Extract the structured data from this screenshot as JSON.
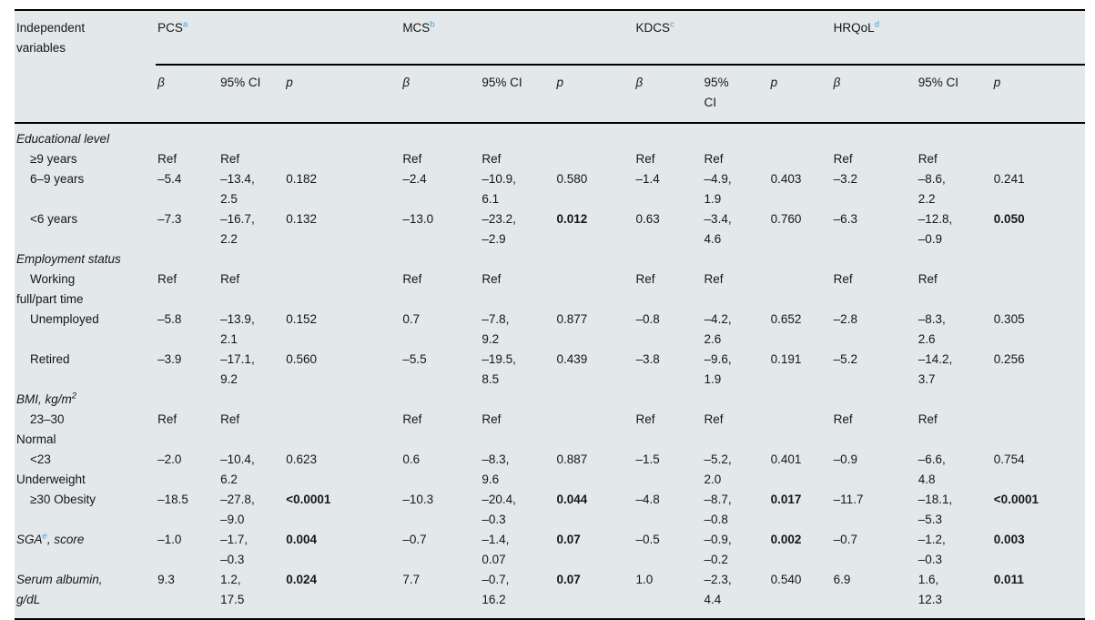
{
  "header": {
    "row_label": "Independent\nvariables",
    "groups": [
      {
        "label": "PCS",
        "sup": "a",
        "beta": "β",
        "ci": "95% CI",
        "p": "p"
      },
      {
        "label": "MCS",
        "sup": "b",
        "beta": "β",
        "ci": "95% CI",
        "p": "p"
      },
      {
        "label": "KDCS",
        "sup": "c",
        "beta": "β",
        "ci": "95%\nCI",
        "p": "p"
      },
      {
        "label": "HRQoL",
        "sup": "d",
        "beta": "β",
        "ci": "95% CI",
        "p": "p"
      }
    ]
  },
  "accent_color": "#3fa3d8",
  "background_color": "#e3e8eb",
  "rows": [
    {
      "type": "section",
      "label": {
        "pre": "Educational level"
      }
    },
    {
      "type": "item",
      "label": {
        "pre": "≥9 years"
      },
      "cells": [
        "Ref",
        "Ref",
        "",
        "Ref",
        "Ref",
        "",
        "Ref",
        "Ref",
        "",
        "Ref",
        "Ref",
        ""
      ]
    },
    {
      "type": "item",
      "label": {
        "pre": "6–9 years"
      },
      "cells": [
        "–5.4",
        "–13.4,\n2.5",
        "0.182",
        "–2.4",
        "–10.9,\n6.1",
        "0.580",
        "–1.4",
        "–4.9,\n1.9",
        "0.403",
        "–3.2",
        "–8.6,\n2.2",
        "0.241"
      ]
    },
    {
      "type": "item",
      "label": {
        "pre": "<6 years"
      },
      "cells": [
        "–7.3",
        "–16.7,\n2.2",
        "0.132",
        "–13.0",
        "–23.2,\n–2.9",
        {
          "v": "0.012",
          "b": true
        },
        "0.63",
        "–3.4,\n4.6",
        "0.760",
        "–6.3",
        "–12.8,\n–0.9",
        {
          "v": "0.050",
          "b": true
        }
      ]
    },
    {
      "type": "section",
      "label": {
        "pre": "Employment status"
      }
    },
    {
      "type": "item",
      "label": {
        "pre": "Working\nfull/part time"
      },
      "cells": [
        "Ref",
        "Ref",
        "",
        "Ref",
        "Ref",
        "",
        "Ref",
        "Ref",
        "",
        "Ref",
        "Ref",
        ""
      ]
    },
    {
      "type": "item",
      "label": {
        "pre": "Unemployed"
      },
      "cells": [
        "–5.8",
        "–13.9,\n2.1",
        "0.152",
        "0.7",
        "–7.8,\n9.2",
        "0.877",
        "–0.8",
        "–4.2,\n2.6",
        "0.652",
        "–2.8",
        "–8.3,\n2.6",
        "0.305"
      ]
    },
    {
      "type": "item",
      "label": {
        "pre": "Retired"
      },
      "cells": [
        "–3.9",
        "–17.1,\n9.2",
        "0.560",
        "–5.5",
        "–19.5,\n8.5",
        "0.439",
        "–3.8",
        "–9.6,\n1.9",
        "0.191",
        "–5.2",
        "–14.2,\n3.7",
        "0.256"
      ]
    },
    {
      "type": "section",
      "label": {
        "pre": "BMI, kg/m",
        "sup": "2",
        "supStyle": "black"
      }
    },
    {
      "type": "item",
      "label": {
        "pre": "23–30\nNormal"
      },
      "cells": [
        "Ref",
        "Ref",
        "",
        "Ref",
        "Ref",
        "",
        "Ref",
        "Ref",
        "",
        "Ref",
        "Ref",
        ""
      ]
    },
    {
      "type": "item",
      "label": {
        "pre": "<23\nUnderweight"
      },
      "cells": [
        "–2.0",
        "–10.4,\n6.2",
        "0.623",
        "0.6",
        "–8.3,\n9.6",
        "0.887",
        "–1.5",
        "–5.2,\n2.0",
        "0.401",
        "–0.9",
        "–6.6,\n4.8",
        "0.754"
      ]
    },
    {
      "type": "item",
      "label": {
        "pre": "≥30 Obesity"
      },
      "cells": [
        "–18.5",
        "–27.8,\n–9.0",
        {
          "v": "<0.0001",
          "b": true
        },
        "–10.3",
        "–20.4,\n–0.3",
        {
          "v": "0.044",
          "b": true
        },
        "–4.8",
        "–8.7,\n–0.8",
        {
          "v": "0.017",
          "b": true
        },
        "–11.7",
        "–18.1,\n–5.3",
        {
          "v": "<0.0001",
          "b": true
        }
      ]
    },
    {
      "type": "var",
      "label": {
        "pre": "SGA",
        "sup": "e",
        "supStyle": "blue",
        "post": ", score"
      },
      "cells": [
        "–1.0",
        "–1.7,\n–0.3",
        {
          "v": "0.004",
          "b": true
        },
        "–0.7",
        "–1.4,\n0.07",
        {
          "v": "0.07",
          "b": true
        },
        "–0.5",
        "–0.9,\n–0.2",
        {
          "v": "0.002",
          "b": true
        },
        "–0.7",
        "–1.2,\n–0.3",
        {
          "v": "0.003",
          "b": true
        }
      ]
    },
    {
      "type": "var",
      "label": {
        "pre": "Serum albumin,\ng/dL"
      },
      "cells": [
        "9.3",
        "1.2,\n17.5",
        {
          "v": "0.024",
          "b": true
        },
        "7.7",
        "–0.7,\n16.2",
        {
          "v": "0.07",
          "b": true
        },
        "1.0",
        "–2.3,\n4.4",
        "0.540",
        "6.9",
        "1.6,\n12.3",
        {
          "v": "0.011",
          "b": true
        }
      ]
    }
  ]
}
